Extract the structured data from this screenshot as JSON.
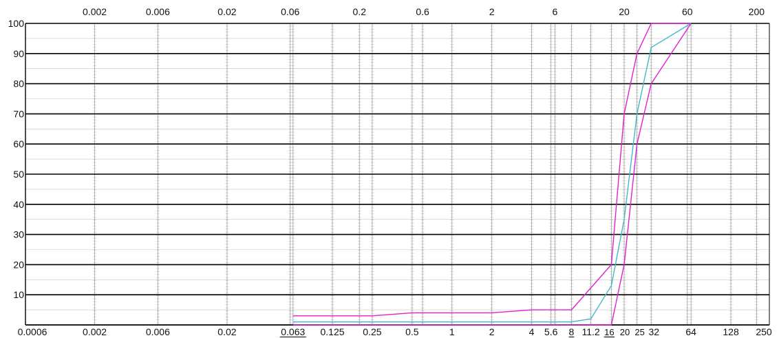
{
  "chart_data": {
    "type": "line",
    "title": "",
    "xlabel": "",
    "ylabel": "",
    "x_scale": "log",
    "xlim": [
      0.0006,
      250
    ],
    "ylim": [
      0,
      100
    ],
    "grid": true,
    "y_ticks": [
      {
        "value": 100,
        "label": "100"
      },
      {
        "value": 90,
        "label": "90"
      },
      {
        "value": 80,
        "label": "80"
      },
      {
        "value": 70,
        "label": "70"
      },
      {
        "value": 60,
        "label": "60"
      },
      {
        "value": 50,
        "label": "50"
      },
      {
        "value": 40,
        "label": "40"
      },
      {
        "value": 30,
        "label": "30"
      },
      {
        "value": 20,
        "label": "20"
      },
      {
        "value": 10,
        "label": "10"
      }
    ],
    "top_ticks": [
      {
        "value": 0.002,
        "label": "0.002"
      },
      {
        "value": 0.006,
        "label": "0.006"
      },
      {
        "value": 0.02,
        "label": "0.02"
      },
      {
        "value": 0.06,
        "label": "0.06"
      },
      {
        "value": 0.2,
        "label": "0.2"
      },
      {
        "value": 0.6,
        "label": "0.6"
      },
      {
        "value": 2,
        "label": "2"
      },
      {
        "value": 6,
        "label": "6"
      },
      {
        "value": 20,
        "label": "20"
      },
      {
        "value": 60,
        "label": "60"
      },
      {
        "value": 200,
        "label": "200"
      }
    ],
    "bottom_ticks": [
      {
        "value": 0.0006,
        "label": "0.0006",
        "underline": false
      },
      {
        "value": 0.002,
        "label": "0.002",
        "underline": false
      },
      {
        "value": 0.006,
        "label": "0.006",
        "underline": false
      },
      {
        "value": 0.02,
        "label": "0.02",
        "underline": false
      },
      {
        "value": 0.063,
        "label": "0.063",
        "underline": true
      },
      {
        "value": 0.125,
        "label": "0.125",
        "underline": false
      },
      {
        "value": 0.25,
        "label": "0.25",
        "underline": false
      },
      {
        "value": 0.5,
        "label": "0.5",
        "underline": false
      },
      {
        "value": 1,
        "label": "1",
        "underline": false
      },
      {
        "value": 2,
        "label": "2",
        "underline": false
      },
      {
        "value": 4,
        "label": "4",
        "underline": false
      },
      {
        "value": 5.6,
        "label": "5.6",
        "underline": false
      },
      {
        "value": 8,
        "label": "8",
        "underline": true
      },
      {
        "value": 11.2,
        "label": "11.2",
        "underline": false
      },
      {
        "value": 16,
        "label": "16",
        "underline": true
      },
      {
        "value": 20,
        "label": "20",
        "underline": false
      },
      {
        "value": 25,
        "label": "25",
        "underline": false
      },
      {
        "value": 32,
        "label": "32",
        "underline": false
      },
      {
        "value": 64,
        "label": "64",
        "underline": false
      },
      {
        "value": 128,
        "label": "128",
        "underline": false
      },
      {
        "value": 250,
        "label": "250",
        "underline": false
      }
    ],
    "series": [
      {
        "color": "#e020d0",
        "points": [
          [
            0.063,
            3
          ],
          [
            0.25,
            3
          ],
          [
            0.5,
            4
          ],
          [
            2,
            4
          ],
          [
            4,
            5
          ],
          [
            8,
            5
          ],
          [
            16,
            20
          ],
          [
            20,
            70
          ],
          [
            25,
            90
          ],
          [
            32,
            100
          ],
          [
            64,
            100
          ]
        ]
      },
      {
        "color": "#40b8c8",
        "points": [
          [
            0.063,
            1
          ],
          [
            8,
            1
          ],
          [
            11.2,
            2
          ],
          [
            16,
            13
          ],
          [
            20,
            35
          ],
          [
            25,
            70
          ],
          [
            32,
            92
          ],
          [
            64,
            100
          ]
        ]
      },
      {
        "color": "#e020d0",
        "points": [
          [
            0.063,
            0
          ],
          [
            16,
            0
          ],
          [
            20,
            20
          ],
          [
            25,
            60
          ],
          [
            32,
            80
          ],
          [
            64,
            100
          ]
        ]
      }
    ]
  }
}
